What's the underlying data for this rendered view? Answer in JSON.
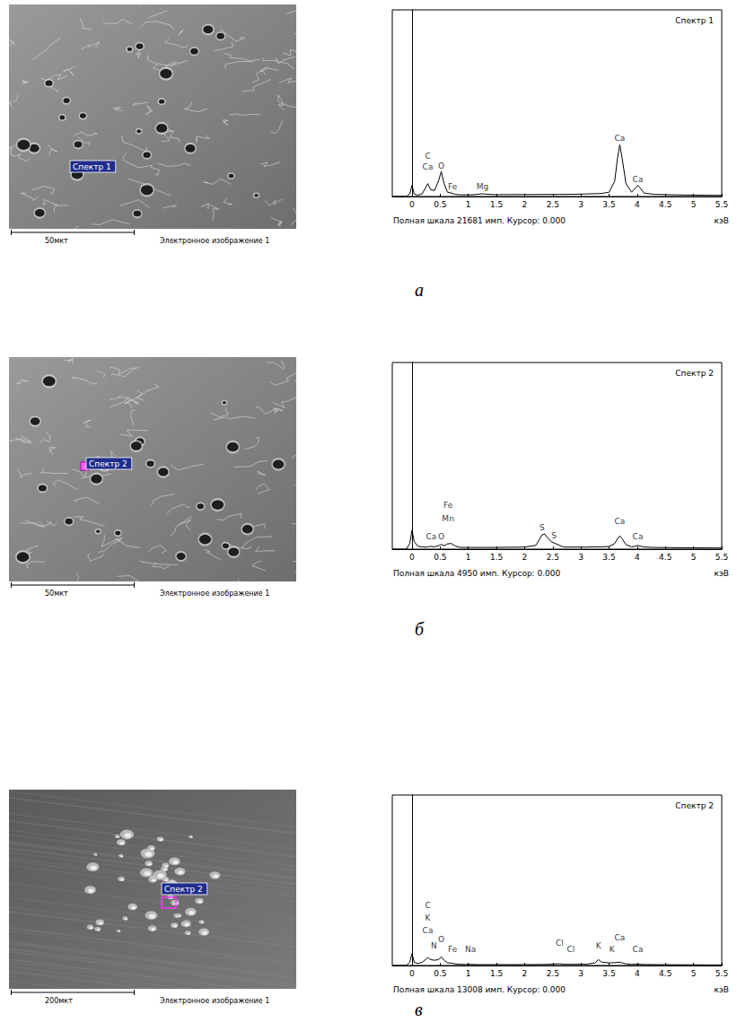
{
  "figure": {
    "panels": [
      {
        "letter": "а",
        "image": {
          "marker_label": "Спектр 1",
          "scale_bar": "50мкт",
          "caption": "Электронное изображение 1"
        }
      },
      {
        "letter": "б",
        "image": {
          "marker_label": "Спектр 2",
          "scale_bar": "50мкт",
          "caption": "Электронное изображение 1"
        }
      },
      {
        "letter": "в",
        "image": {
          "marker_label": "Спектр 2",
          "scale_bar": "200мкт",
          "caption": "Электронное изображение 1"
        }
      }
    ]
  },
  "chart_data": [
    {
      "type": "line",
      "title": "Спектр 1",
      "x_label": "кэВ",
      "footer": "Полная шкала 21681 имп. Курсор: 0.000",
      "cursor": 0,
      "x": [
        -0.35,
        -0.1,
        -0.04,
        0,
        0.04,
        0.1,
        0.18,
        0.24,
        0.28,
        0.33,
        0.4,
        0.47,
        0.52,
        0.57,
        0.63,
        0.7,
        0.77,
        0.85,
        0.95,
        1.04,
        1.12,
        1.2,
        1.25,
        1.3,
        1.45,
        1.7,
        2,
        2.2,
        2.31,
        2.36,
        2.41,
        2.47,
        2.62,
        2.7,
        2.9,
        3.1,
        3.25,
        3.31,
        3.37,
        3.5,
        3.6,
        3.65,
        3.69,
        3.73,
        3.8,
        3.9,
        3.97,
        4.01,
        4.05,
        4.12,
        4.3,
        4.6,
        5,
        5.5
      ],
      "values": [
        0,
        0,
        300,
        1300,
        300,
        150,
        300,
        1000,
        1500,
        800,
        700,
        1800,
        2900,
        1500,
        500,
        400,
        250,
        200,
        200,
        200,
        220,
        280,
        320,
        280,
        220,
        220,
        230,
        230,
        240,
        240,
        240,
        240,
        240,
        250,
        260,
        300,
        330,
        340,
        360,
        500,
        1800,
        4500,
        6000,
        4500,
        1500,
        500,
        1000,
        1300,
        1000,
        400,
        250,
        200,
        160,
        130
      ],
      "color": "#000000",
      "xlim": [
        -0.35,
        5.5
      ],
      "xticks": [
        0,
        0.5,
        1,
        1.5,
        2,
        2.5,
        3,
        3.5,
        4,
        4.5,
        5,
        5.5
      ],
      "ylim": [
        0,
        21681
      ],
      "tick_labels": "x",
      "annotations": [
        {
          "text": "C",
          "x": 0.28,
          "y": 4250
        },
        {
          "text": "Ca",
          "x": 0.28,
          "y": 2950
        },
        {
          "text": "O",
          "x": 0.52,
          "y": 3100
        },
        {
          "text": "Fe",
          "x": 0.72,
          "y": 700
        },
        {
          "text": "Mg",
          "x": 1.25,
          "y": 700
        },
        {
          "text": "Ca",
          "x": 3.69,
          "y": 6300
        },
        {
          "text": "Ca",
          "x": 4.01,
          "y": 1500
        }
      ]
    },
    {
      "type": "line",
      "title": "Спектр 2",
      "x_label": "кэВ",
      "footer": "Полная шкала 4950 имп. Курсор: 0.000",
      "cursor": 0,
      "x": [
        -0.35,
        -0.1,
        -0.04,
        0,
        0.04,
        0.1,
        0.18,
        0.24,
        0.28,
        0.33,
        0.4,
        0.47,
        0.52,
        0.57,
        0.63,
        0.7,
        0.77,
        0.85,
        0.95,
        1.04,
        1.12,
        1.2,
        1.25,
        1.3,
        1.45,
        1.7,
        2,
        2.2,
        2.31,
        2.36,
        2.41,
        2.47,
        2.62,
        2.7,
        2.9,
        3.1,
        3.25,
        3.31,
        3.37,
        3.5,
        3.6,
        3.65,
        3.69,
        3.73,
        3.8,
        3.9,
        3.97,
        4.01,
        4.05,
        4.12,
        4.3,
        4.6,
        5,
        5.5
      ],
      "values": [
        0,
        0,
        150,
        500,
        200,
        80,
        60,
        50,
        60,
        75,
        60,
        90,
        125,
        90,
        140,
        150,
        80,
        50,
        45,
        45,
        45,
        45,
        45,
        45,
        45,
        50,
        55,
        100,
        380,
        400,
        300,
        200,
        100,
        55,
        55,
        55,
        60,
        60,
        60,
        70,
        150,
        280,
        350,
        280,
        120,
        60,
        80,
        100,
        80,
        55,
        45,
        40,
        35,
        30
      ],
      "color": "#000000",
      "xlim": [
        -0.35,
        5.5
      ],
      "xticks": [
        0,
        0.5,
        1,
        1.5,
        2,
        2.5,
        3,
        3.5,
        4,
        4.5,
        5,
        5.5
      ],
      "ylim": [
        0,
        4950
      ],
      "tick_labels": "x",
      "annotations": [
        {
          "text": "Fe",
          "x": 0.64,
          "y": 1070
        },
        {
          "text": "Mn",
          "x": 0.64,
          "y": 700
        },
        {
          "text": "Ca",
          "x": 0.34,
          "y": 220
        },
        {
          "text": "O",
          "x": 0.52,
          "y": 220
        },
        {
          "text": "S",
          "x": 2.31,
          "y": 470
        },
        {
          "text": "S",
          "x": 2.52,
          "y": 250
        },
        {
          "text": "Ca",
          "x": 3.69,
          "y": 620
        },
        {
          "text": "Ca",
          "x": 4.01,
          "y": 220
        }
      ]
    },
    {
      "type": "line",
      "title": "Спектр 2",
      "x_label": "кэВ",
      "footer": "Полная шкала 13008 имп. Курсор: 0.000",
      "cursor": 0,
      "x": [
        -0.35,
        -0.1,
        -0.04,
        0,
        0.04,
        0.1,
        0.18,
        0.24,
        0.28,
        0.33,
        0.4,
        0.47,
        0.52,
        0.57,
        0.63,
        0.7,
        0.77,
        0.85,
        0.95,
        1.04,
        1.12,
        1.2,
        1.25,
        1.3,
        1.45,
        1.7,
        2,
        2.2,
        2.31,
        2.36,
        2.41,
        2.47,
        2.62,
        2.7,
        2.9,
        3.1,
        3.25,
        3.31,
        3.37,
        3.5,
        3.6,
        3.65,
        3.69,
        3.73,
        3.8,
        3.9,
        3.97,
        4.01,
        4.05,
        4.12,
        4.3,
        4.6,
        5,
        5.5
      ],
      "values": [
        0,
        0,
        250,
        900,
        250,
        150,
        250,
        450,
        600,
        450,
        400,
        450,
        650,
        400,
        200,
        180,
        120,
        90,
        80,
        90,
        70,
        70,
        70,
        70,
        70,
        70,
        70,
        75,
        80,
        80,
        90,
        100,
        130,
        90,
        90,
        100,
        200,
        450,
        250,
        200,
        220,
        240,
        260,
        200,
        120,
        90,
        90,
        110,
        90,
        80,
        70,
        60,
        50,
        40
      ],
      "color": "#000000",
      "xlim": [
        -0.35,
        5.5
      ],
      "xticks": [
        0,
        0.5,
        1,
        1.5,
        2,
        2.5,
        3,
        3.5,
        4,
        4.5,
        5,
        5.5
      ],
      "ylim": [
        0,
        13008
      ],
      "tick_labels": "x",
      "annotations": [
        {
          "text": "C",
          "x": 0.28,
          "y": 4300
        },
        {
          "text": "K",
          "x": 0.28,
          "y": 3300
        },
        {
          "text": "Ca",
          "x": 0.28,
          "y": 2350
        },
        {
          "text": "N",
          "x": 0.39,
          "y": 1180
        },
        {
          "text": "O",
          "x": 0.52,
          "y": 1700
        },
        {
          "text": "Fe",
          "x": 0.72,
          "y": 900
        },
        {
          "text": "Na",
          "x": 1.04,
          "y": 900
        },
        {
          "text": "Cl",
          "x": 2.62,
          "y": 1370
        },
        {
          "text": "Cl",
          "x": 2.82,
          "y": 900
        },
        {
          "text": "K",
          "x": 3.31,
          "y": 1180
        },
        {
          "text": "K",
          "x": 3.55,
          "y": 900
        },
        {
          "text": "Ca",
          "x": 3.69,
          "y": 1800
        },
        {
          "text": "Ca",
          "x": 4.01,
          "y": 900
        }
      ]
    }
  ]
}
